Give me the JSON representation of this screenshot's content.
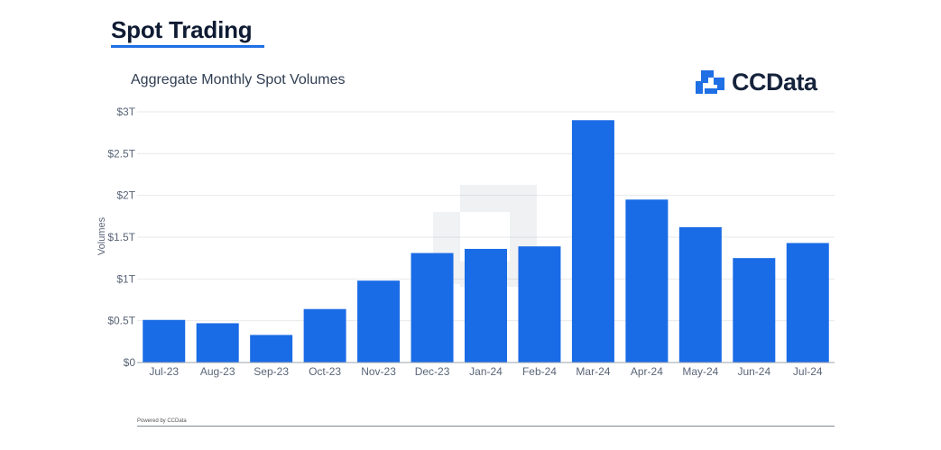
{
  "page": {
    "heading": "Spot Trading",
    "accent_color": "#1f6fe5"
  },
  "brand": {
    "name": "CCData",
    "icon": "ccdata-logo-icon",
    "icon_color": "#1f6fe5"
  },
  "footer": {
    "powered_by": "Powered by CCData"
  },
  "chart_data": {
    "type": "bar",
    "title": "Aggregate Monthly Spot Volumes",
    "xlabel": "",
    "ylabel": "Volumes",
    "categories": [
      "Jul-23",
      "Aug-23",
      "Sep-23",
      "Oct-23",
      "Nov-23",
      "Dec-23",
      "Jan-24",
      "Feb-24",
      "Mar-24",
      "Apr-24",
      "May-24",
      "Jun-24",
      "Jul-24"
    ],
    "values": [
      0.51,
      0.47,
      0.33,
      0.64,
      0.98,
      1.31,
      1.36,
      1.39,
      2.9,
      1.95,
      1.62,
      1.25,
      1.43
    ],
    "unit": "trillion USD",
    "ylim": [
      0,
      3
    ],
    "yticks": [
      0,
      0.5,
      1,
      1.5,
      2,
      2.5,
      3
    ],
    "ytick_labels": [
      "$0",
      "$0.5T",
      "$1T",
      "$1.5T",
      "$2T",
      "$2.5T",
      "$3T"
    ],
    "bar_color": "#1a6be6",
    "grid": true,
    "legend": "none",
    "watermark": "ccdata-logo-icon"
  }
}
